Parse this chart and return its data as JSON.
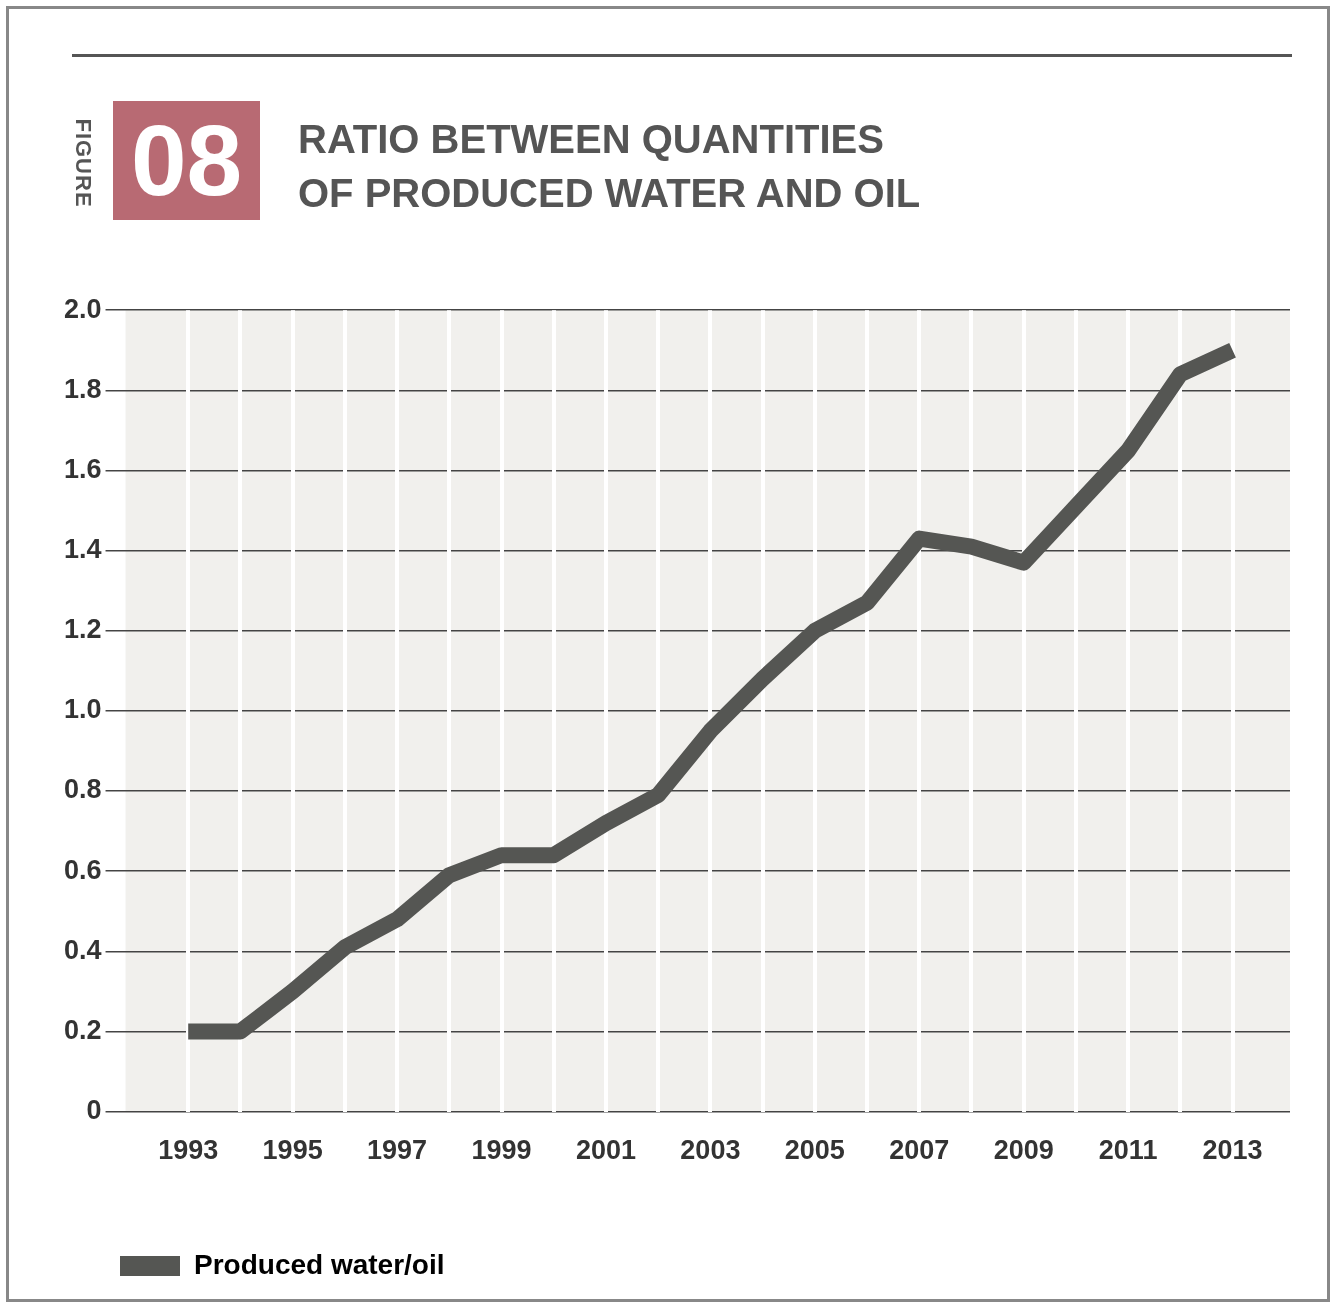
{
  "chart_data": {
    "type": "line",
    "title": "RATIO BETWEEN QUANTITIES OF PRODUCED WATER AND OIL",
    "annotations": [
      "FIGURE",
      "08"
    ],
    "x": [
      1993,
      1994,
      1995,
      1996,
      1997,
      1998,
      1999,
      2000,
      2001,
      2002,
      2003,
      2004,
      2005,
      2006,
      2007,
      2008,
      2009,
      2010,
      2011,
      2012,
      2013
    ],
    "series": [
      {
        "name": "Produced water/oil",
        "color": "#555653",
        "values": [
          0.2,
          0.2,
          0.3,
          0.41,
          0.48,
          0.59,
          0.64,
          0.64,
          0.72,
          0.79,
          0.95,
          1.08,
          1.2,
          1.27,
          1.43,
          1.41,
          1.37,
          1.51,
          1.65,
          1.84,
          1.9
        ]
      }
    ],
    "xlim": [
      1991.8,
      2014.1
    ],
    "xticks": [
      1993,
      {
        "value": 1994,
        "label": null
      },
      1995,
      {
        "value": 1996,
        "label": null
      },
      1997,
      {
        "value": 1998,
        "label": null
      },
      1999,
      {
        "value": 2000,
        "label": null
      },
      2001,
      {
        "value": 2002,
        "label": null
      },
      2003,
      {
        "value": 2004,
        "label": null
      },
      2005,
      {
        "value": 2006,
        "label": null
      },
      2007,
      {
        "value": 2008,
        "label": null
      },
      2009,
      {
        "value": 2010,
        "label": null
      },
      2011,
      {
        "value": 2012,
        "label": null
      },
      2013
    ],
    "ylim": [
      0,
      2.0
    ],
    "yticks": [
      0,
      {
        "value": 0.2,
        "label": "0.2"
      },
      {
        "value": 0.4,
        "label": "0.4"
      },
      {
        "value": 0.6,
        "label": "0.6"
      },
      {
        "value": 0.8,
        "label": "0.8"
      },
      {
        "value": 1.0,
        "label": "1.0"
      },
      {
        "value": 1.2,
        "label": "1.2"
      },
      {
        "value": 1.4,
        "label": "1.4"
      },
      {
        "value": 1.6,
        "label": "1.6"
      },
      {
        "value": 1.8,
        "label": "1.8"
      },
      {
        "value": 2.0,
        "label": "2.0"
      }
    ],
    "grid": true,
    "legend": "bottom left",
    "marker": "none",
    "line_style": "solid"
  }
}
